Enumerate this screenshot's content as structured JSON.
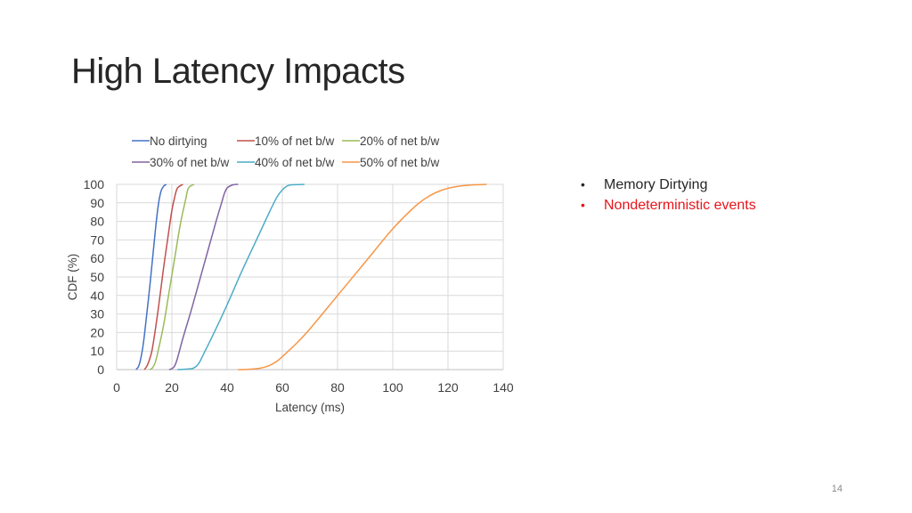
{
  "slide": {
    "title": "High Latency Impacts",
    "page_number": "14"
  },
  "bullets": [
    {
      "text": "Memory Dirtying",
      "color": "#262626"
    },
    {
      "text": "Nondeterministic events",
      "color": "#e8141a"
    }
  ],
  "chart_data": {
    "type": "line",
    "title": "",
    "xlabel": "Latency (ms)",
    "ylabel": "CDF (%)",
    "xlim": [
      0,
      140
    ],
    "ylim": [
      0,
      100
    ],
    "xticks": [
      0,
      20,
      40,
      60,
      80,
      100,
      120,
      140
    ],
    "yticks": [
      0,
      10,
      20,
      30,
      40,
      50,
      60,
      70,
      80,
      90,
      100
    ],
    "grid": true,
    "legend_position": "top",
    "series": [
      {
        "name": "No dirtying",
        "color": "#4472c4",
        "x": [
          7,
          8,
          9,
          10,
          12,
          14,
          15,
          16,
          17,
          18
        ],
        "y": [
          0,
          2,
          8,
          18,
          45,
          75,
          88,
          96,
          99,
          100
        ]
      },
      {
        "name": "10% of net b/w",
        "color": "#c0504d",
        "x": [
          10,
          11,
          12,
          13,
          15,
          17,
          19,
          20,
          21,
          22,
          24
        ],
        "y": [
          0,
          2,
          6,
          12,
          32,
          55,
          76,
          86,
          93,
          98,
          100
        ]
      },
      {
        "name": "20% of net b/w",
        "color": "#9bbb59",
        "x": [
          12,
          13,
          14,
          15,
          17,
          19,
          21,
          23,
          25,
          26,
          28
        ],
        "y": [
          0,
          1,
          4,
          10,
          24,
          42,
          60,
          78,
          92,
          98,
          100
        ]
      },
      {
        "name": "30% of net b/w",
        "color": "#8064a2",
        "x": [
          19,
          20,
          21,
          22,
          24,
          27,
          30,
          33,
          36,
          38,
          39,
          40,
          42,
          44
        ],
        "y": [
          0,
          0.5,
          2,
          6,
          17,
          32,
          48,
          64,
          80,
          90,
          95,
          98,
          99.7,
          100
        ]
      },
      {
        "name": "40% of net b/w",
        "color": "#4bacc6",
        "x": [
          22,
          27,
          28,
          29,
          30,
          32,
          35,
          40,
          45,
          50,
          55,
          58,
          60,
          62,
          64,
          68
        ],
        "y": [
          0,
          0.5,
          1,
          2,
          4,
          10,
          19,
          35,
          52,
          68,
          84,
          93,
          97,
          99.3,
          99.8,
          100
        ]
      },
      {
        "name": "50% of net b/w",
        "color": "#f79646",
        "x": [
          44,
          48,
          52,
          55,
          58,
          60,
          65,
          70,
          80,
          90,
          100,
          108,
          113,
          118,
          123,
          128,
          134
        ],
        "y": [
          0,
          0.2,
          0.8,
          2,
          4.5,
          7,
          14,
          22,
          40,
          58,
          76,
          88,
          93.5,
          97,
          98.8,
          99.6,
          100
        ]
      }
    ]
  }
}
